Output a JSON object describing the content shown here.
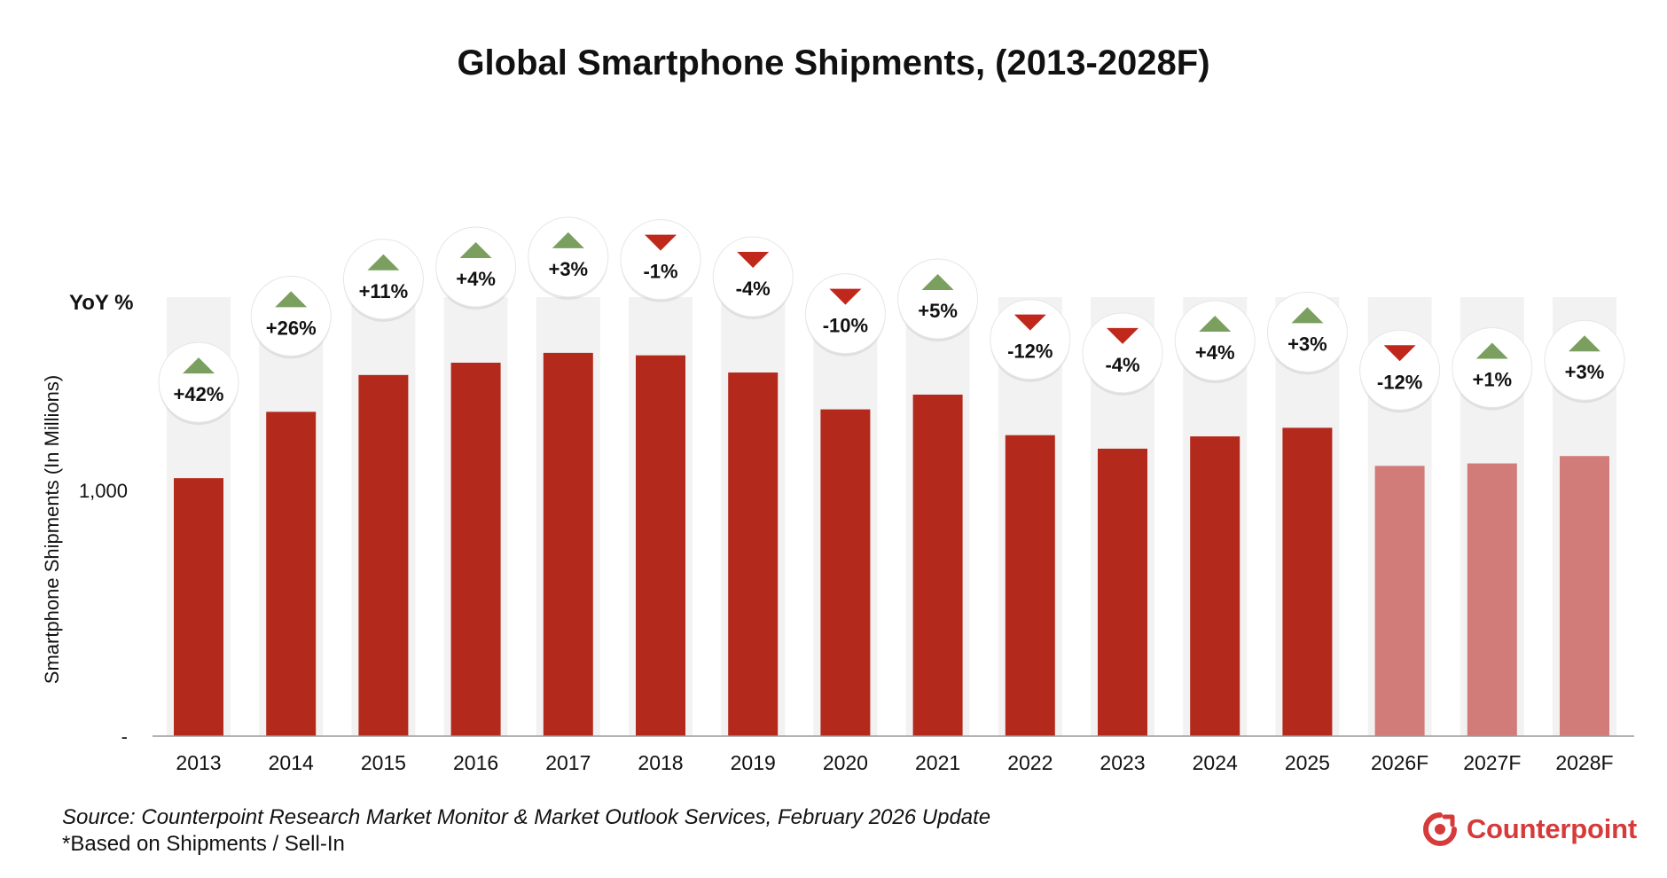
{
  "chart_data": {
    "type": "bar",
    "title": "Global Smartphone Shipments, (2013-2028F)",
    "ylabel": "Smartphone Shipments (In Millions)",
    "yoy_label": "YoY %",
    "categories": [
      "2013",
      "2014",
      "2015",
      "2016",
      "2017",
      "2018",
      "2019",
      "2020",
      "2021",
      "2022",
      "2023",
      "2024",
      "2025",
      "2026F",
      "2027F",
      "2028F"
    ],
    "values": [
      1050,
      1320,
      1470,
      1520,
      1560,
      1550,
      1480,
      1330,
      1390,
      1225,
      1170,
      1220,
      1255,
      1100,
      1110,
      1140
    ],
    "yoy": [
      "+42%",
      "+26%",
      "+11%",
      "+4%",
      "+3%",
      "-1%",
      "-4%",
      "-10%",
      "+5%",
      "-12%",
      "-4%",
      "+4%",
      "+3%",
      "-12%",
      "+1%",
      "+3%"
    ],
    "forecast": [
      false,
      false,
      false,
      false,
      false,
      false,
      false,
      false,
      false,
      false,
      false,
      false,
      false,
      true,
      true,
      true
    ],
    "ylim": [
      0,
      2200
    ],
    "yticks": [
      {
        "value": 0,
        "label": "-"
      },
      {
        "value": 1000,
        "label": "1,000"
      }
    ],
    "grid": false,
    "colors": {
      "actual": "#b32a1c",
      "forecast": "#d17c79",
      "column_bg": "#f2f2f2",
      "up": "#7a9f5e",
      "down": "#c0281c",
      "axis": "#9a9a9a",
      "brand": "#d63a3a"
    }
  },
  "footer": {
    "source": "Source: Counterpoint Research Market Monitor & Market Outlook Services, February 2026 Update",
    "note": "*Based on Shipments / Sell-In"
  },
  "brand": {
    "name": "Counterpoint",
    "icon": "counterpoint-logo-icon"
  }
}
